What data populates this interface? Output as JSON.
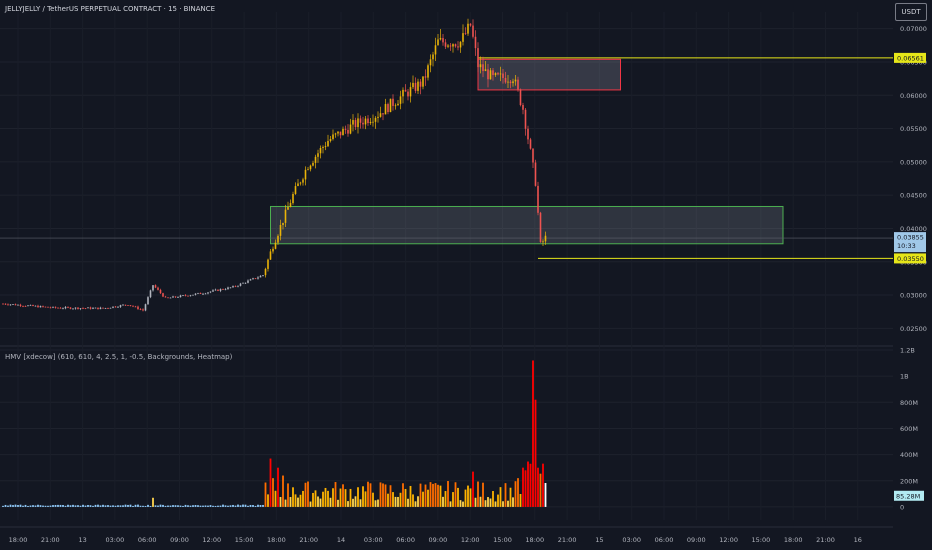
{
  "header": {
    "symbol": "JELLYJELLY / TetherUS PERPETUAL CONTRACT · 15 · BINANCE"
  },
  "currency_button": "USDT",
  "indicator": {
    "label": "HMV [xdecow] (610, 610, 4, 2.5, 1, -0.5, Backgrounds, Heatmap)"
  },
  "colors": {
    "background": "#131722",
    "bull": "#eab308",
    "bear": "#ef5350",
    "neutral": "#b2b5be",
    "supply_zone": "#f23645",
    "demand_zone": "#4caf50",
    "level_line": "#e6e619",
    "volume_extreme": "#ff0000"
  },
  "chart_data": [
    {
      "type": "candlestick",
      "ylim": [
        0.0225,
        0.0725
      ],
      "price_scale": [
        "0.07000",
        "0.06500",
        "0.06000",
        "0.05500",
        "0.05000",
        "0.04500",
        "0.04000",
        "0.03500",
        "0.03000",
        "0.02500"
      ],
      "time_labels": [
        "18:00",
        "21:00",
        "13",
        "03:00",
        "06:00",
        "09:00",
        "12:00",
        "15:00",
        "18:00",
        "21:00",
        "14",
        "03:00",
        "06:00",
        "09:00",
        "12:00",
        "15:00",
        "18:00",
        "21:00",
        "15",
        "03:00",
        "06:00",
        "09:00",
        "12:00",
        "15:00",
        "18:00",
        "21:00",
        "16"
      ],
      "price_path": [
        {
          "i": 0,
          "p": 0.0287
        },
        {
          "i": 20,
          "p": 0.0281
        },
        {
          "i": 40,
          "p": 0.028
        },
        {
          "i": 50,
          "p": 0.0286
        },
        {
          "i": 56,
          "p": 0.0277
        },
        {
          "i": 60,
          "p": 0.0315
        },
        {
          "i": 65,
          "p": 0.0295
        },
        {
          "i": 80,
          "p": 0.0303
        },
        {
          "i": 92,
          "p": 0.0312
        },
        {
          "i": 104,
          "p": 0.033
        },
        {
          "i": 108,
          "p": 0.0375
        },
        {
          "i": 116,
          "p": 0.045
        },
        {
          "i": 122,
          "p": 0.0495
        },
        {
          "i": 130,
          "p": 0.0532
        },
        {
          "i": 140,
          "p": 0.0555
        },
        {
          "i": 150,
          "p": 0.0572
        },
        {
          "i": 160,
          "p": 0.06
        },
        {
          "i": 168,
          "p": 0.062
        },
        {
          "i": 174,
          "p": 0.068
        },
        {
          "i": 183,
          "p": 0.068
        },
        {
          "i": 187,
          "p": 0.0705
        },
        {
          "i": 190,
          "p": 0.0645
        },
        {
          "i": 196,
          "p": 0.0625
        },
        {
          "i": 204,
          "p": 0.0628
        },
        {
          "i": 208,
          "p": 0.058
        },
        {
          "i": 213,
          "p": 0.047
        },
        {
          "i": 215,
          "p": 0.0375
        },
        {
          "i": 217,
          "p": 0.0386
        }
      ],
      "zones": [
        {
          "kind": "supply",
          "from": 190,
          "to": 247,
          "low": 0.0608,
          "high": 0.0654
        },
        {
          "kind": "demand",
          "from": 107,
          "to": 312,
          "low": 0.0377,
          "high": 0.0433
        }
      ],
      "levels": [
        {
          "value": 0.06561,
          "label": "0.06561",
          "from": 190
        },
        {
          "value": 0.0355,
          "label": "0.03550",
          "from": 214
        }
      ],
      "last_price": {
        "value": 0.03855,
        "label": "0.03855",
        "countdown": "10:33"
      }
    },
    {
      "type": "bar",
      "ylim": [
        -0.1,
        1.2
      ],
      "unit": "B",
      "scale_labels": [
        "1.2B",
        "1B",
        "800M",
        "600M",
        "400M",
        "200M",
        "0"
      ],
      "base_volume": 0.012,
      "spikes": [
        {
          "i": 60,
          "v": 0.07
        },
        {
          "i": 107,
          "v": 0.37
        },
        {
          "i": 108,
          "v": 0.22
        },
        {
          "i": 110,
          "v": 0.3
        },
        {
          "i": 112,
          "v": 0.24
        },
        {
          "i": 116,
          "v": 0.15
        },
        {
          "i": 188,
          "v": 0.27
        },
        {
          "i": 206,
          "v": 0.22
        },
        {
          "i": 209,
          "v": 0.28
        },
        {
          "i": 211,
          "v": 0.33
        },
        {
          "i": 212,
          "v": 1.12
        },
        {
          "i": 213,
          "v": 0.82
        },
        {
          "i": 214,
          "v": 0.3
        }
      ],
      "current_volume": {
        "value": 0.08528,
        "label": "85.28M"
      }
    }
  ]
}
